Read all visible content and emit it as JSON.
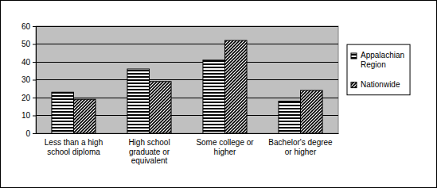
{
  "chart_data": {
    "type": "bar",
    "categories": [
      "Less than a high school diploma",
      "High school graduate or equivalent",
      "Some college or higher",
      "Bachelor's degree or higher"
    ],
    "series": [
      {
        "name": "Appalachian Region",
        "color": "#000000",
        "values": [
          23,
          36,
          41,
          18
        ]
      },
      {
        "name": "Nationwide",
        "color": "#000000",
        "values": [
          19,
          29,
          52,
          24
        ]
      }
    ],
    "ylim": [
      0,
      60
    ],
    "yticks": [
      0,
      10,
      20,
      30,
      40,
      50,
      60
    ],
    "grid": true,
    "legend": "right"
  }
}
